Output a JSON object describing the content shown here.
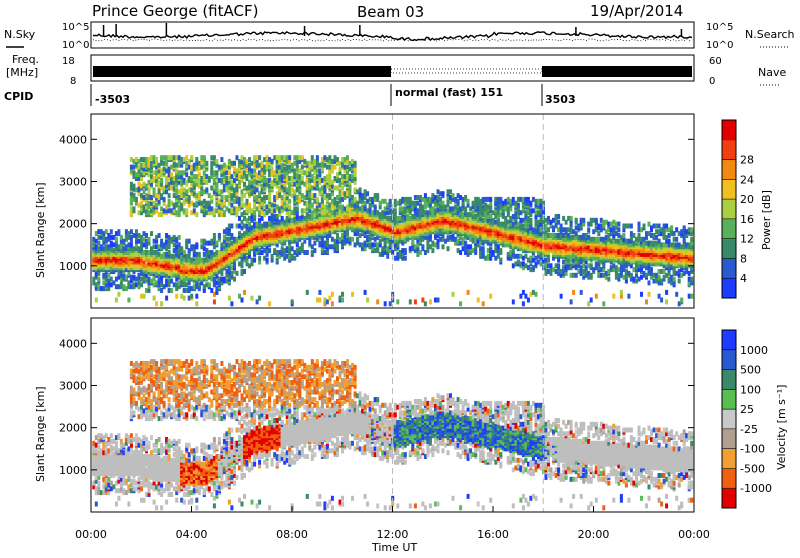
{
  "header": {
    "title": "Prince George (fitACF)",
    "beam": "Beam 03",
    "date": "19/Apr/2014"
  },
  "left_labels": {
    "nsky": "N.Sky",
    "freq_line1": "Freq.",
    "freq_line2": "[MHz]",
    "cpid": "CPID"
  },
  "right_labels": {
    "nsearch": "N.Search",
    "nave": "Nave"
  },
  "cpid_segments": [
    {
      "label": "-3503"
    },
    {
      "label": "normal (fast) 151"
    },
    {
      "label": "3503"
    }
  ],
  "chart_data": [
    {
      "type": "line",
      "name": "noise-panel",
      "ylabel": "N.Sky",
      "y_ticks": [
        "10^5",
        "10^0"
      ],
      "y2_ticks": [
        "10^5",
        "10^0"
      ],
      "y2label": "N.Search",
      "x": [
        "00:00",
        "24:00"
      ]
    },
    {
      "type": "line",
      "name": "frequency-panel",
      "ylabel": "Freq. [MHz]",
      "ylim": [
        8,
        18
      ],
      "y_ticks": [
        "18",
        "8"
      ],
      "y2label": "Nave",
      "y2lim": [
        0,
        60
      ],
      "y2_ticks": [
        "60",
        "0"
      ]
    },
    {
      "type": "heatmap",
      "name": "power",
      "ylabel": "Slant Range [km]",
      "y_ticks": [
        "1000",
        "2000",
        "3000",
        "4000"
      ],
      "ylim": [
        0,
        4600
      ],
      "colorbar_label": "Power [dB]",
      "colorbar_ticks": [
        "4",
        "8",
        "12",
        "16",
        "20",
        "24",
        "28"
      ]
    },
    {
      "type": "heatmap",
      "name": "velocity",
      "ylabel": "Slant Range [km]",
      "y_ticks": [
        "1000",
        "2000",
        "3000",
        "4000"
      ],
      "ylim": [
        0,
        4600
      ],
      "colorbar_label": "Velocity [m s⁻¹]",
      "colorbar_ticks": [
        "1000",
        "500",
        "100",
        "25",
        "-25",
        "-100",
        "-500",
        "-1000"
      ]
    }
  ],
  "x_axis": {
    "label": "Time UT",
    "ticks": [
      "00:00",
      "04:00",
      "08:00",
      "12:00",
      "16:00",
      "20:00",
      "00:00"
    ]
  },
  "colors": {
    "power": [
      "#1e3cff",
      "#2a5ad0",
      "#3a8a6a",
      "#58b05a",
      "#a8d040",
      "#f0c020",
      "#f08a10",
      "#f04010",
      "#e00000"
    ],
    "velocity": [
      "#1e3cff",
      "#2a5ad0",
      "#3a8a6a",
      "#58c050",
      "#c8c8c8",
      "#b0a090",
      "#f0a030",
      "#f06010",
      "#e00000"
    ],
    "ground_scatter": "#bebebe"
  }
}
